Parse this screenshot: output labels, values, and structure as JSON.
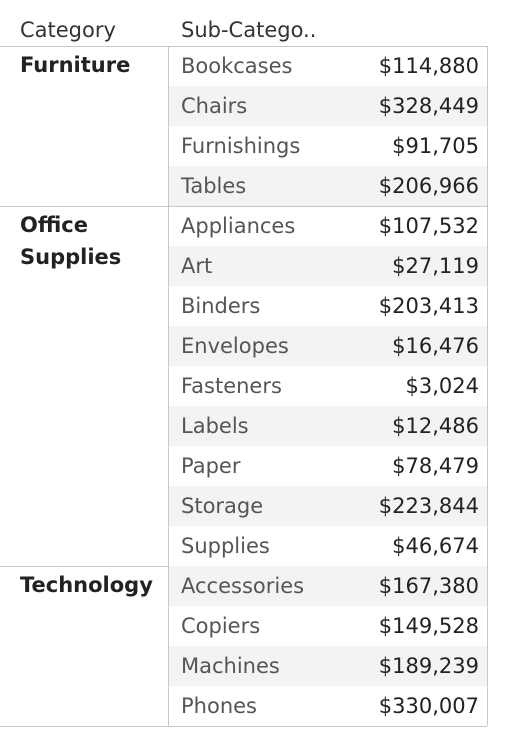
{
  "headers": {
    "category": "Category",
    "subcategory": "Sub-Catego.."
  },
  "groups": [
    {
      "category_lines": [
        "Furniture"
      ],
      "rows": [
        {
          "sub": "Bookcases",
          "value": "$114,880"
        },
        {
          "sub": "Chairs",
          "value": "$328,449"
        },
        {
          "sub": "Furnishings",
          "value": "$91,705"
        },
        {
          "sub": "Tables",
          "value": "$206,966"
        }
      ]
    },
    {
      "category_lines": [
        "Office",
        "Supplies"
      ],
      "rows": [
        {
          "sub": "Appliances",
          "value": "$107,532"
        },
        {
          "sub": "Art",
          "value": "$27,119"
        },
        {
          "sub": "Binders",
          "value": "$203,413"
        },
        {
          "sub": "Envelopes",
          "value": "$16,476"
        },
        {
          "sub": "Fasteners",
          "value": "$3,024"
        },
        {
          "sub": "Labels",
          "value": "$12,486"
        },
        {
          "sub": "Paper",
          "value": "$78,479"
        },
        {
          "sub": "Storage",
          "value": "$223,844"
        },
        {
          "sub": "Supplies",
          "value": "$46,674"
        }
      ]
    },
    {
      "category_lines": [
        "Technology"
      ],
      "rows": [
        {
          "sub": "Accessories",
          "value": "$167,380"
        },
        {
          "sub": "Copiers",
          "value": "$149,528"
        },
        {
          "sub": "Machines",
          "value": "$189,239"
        },
        {
          "sub": "Phones",
          "value": "$330,007"
        }
      ]
    }
  ]
}
